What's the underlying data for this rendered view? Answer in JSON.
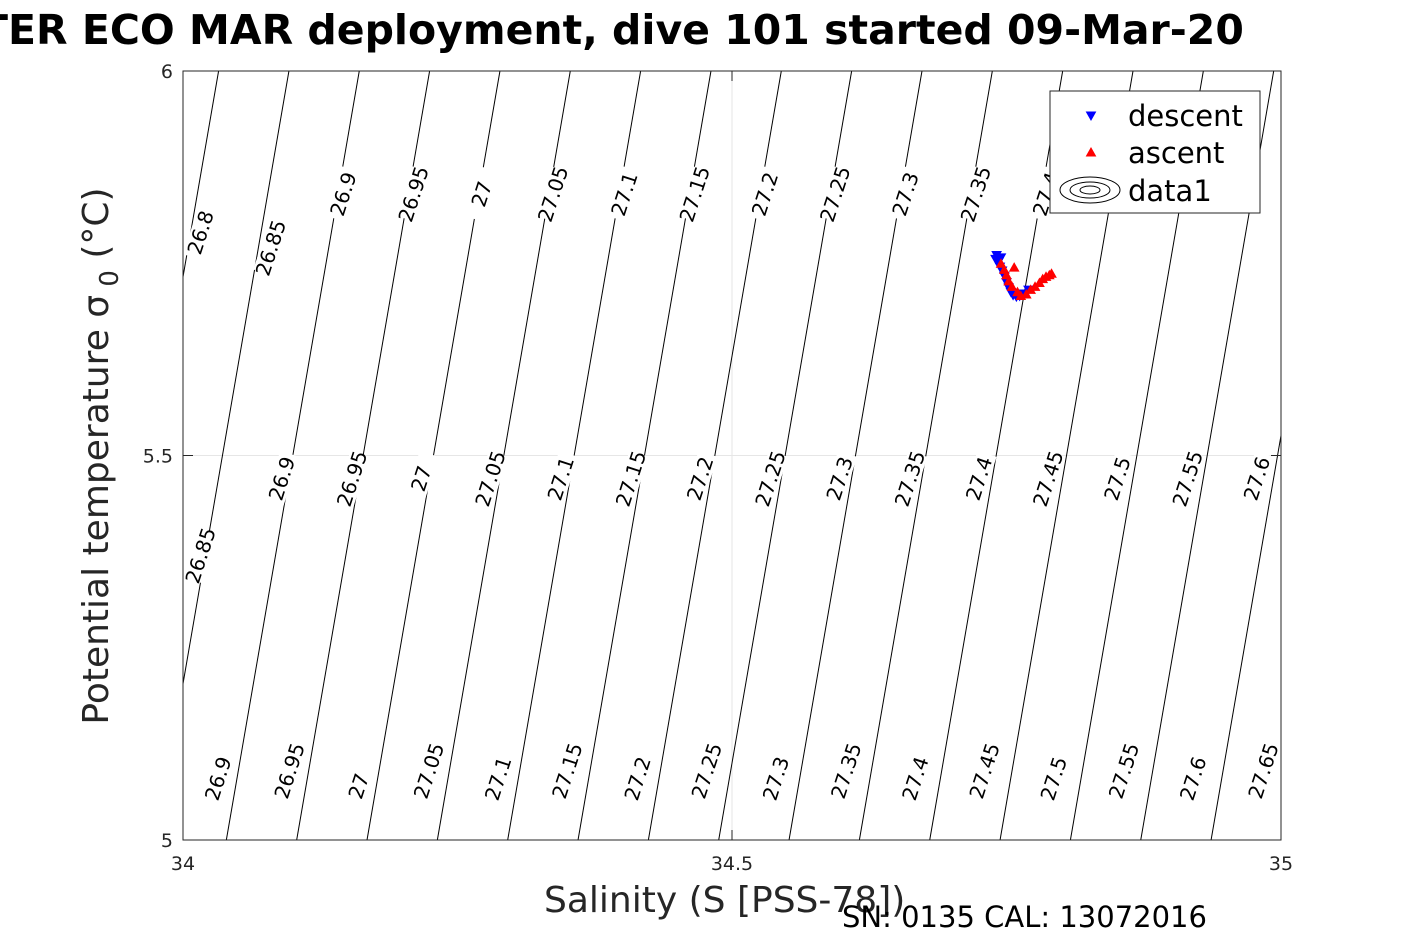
{
  "chart_data": {
    "type": "scatter",
    "title": "TER ECO MAR deployment, dive 101 started 09-Mar-20",
    "xlabel": "Salinity (S [PSS-78])",
    "ylabel_text": "Potential temperature σ",
    "ylabel_sub": "0",
    "ylabel_unit": " (°C)",
    "xlim": [
      34,
      35.0
    ],
    "ylim": [
      5,
      6
    ],
    "xticks": [
      34,
      34.5,
      35
    ],
    "xtick_labels": [
      "34",
      "34.5",
      "35"
    ],
    "yticks": [
      5,
      5.5,
      6
    ],
    "ytick_labels": [
      "5",
      "5.5",
      "6"
    ],
    "grid": true,
    "legend_placement": "top-right",
    "legend": [
      "descent",
      "ascent",
      "data1"
    ],
    "descent_color": "#0000ff",
    "ascent_color": "#ff0000",
    "contour_color": "#000000",
    "isopycnals": {
      "levels": [
        26.8,
        26.85,
        26.9,
        26.95,
        27.0,
        27.05,
        27.1,
        27.15,
        27.2,
        27.25,
        27.3,
        27.35,
        27.4,
        27.45,
        27.5,
        27.55,
        27.6,
        27.65
      ],
      "labels": [
        {
          "text": "26.8",
          "s": 34.016,
          "t": 5.79
        },
        {
          "text": "26.85",
          "s": 34.08,
          "t": 5.77
        },
        {
          "text": "26.9",
          "s": 34.146,
          "t": 5.84
        },
        {
          "text": "26.95",
          "s": 34.21,
          "t": 5.84
        },
        {
          "text": "27",
          "s": 34.272,
          "t": 5.84
        },
        {
          "text": "27.05",
          "s": 34.337,
          "t": 5.84
        },
        {
          "text": "27.1",
          "s": 34.402,
          "t": 5.84
        },
        {
          "text": "27.15",
          "s": 34.466,
          "t": 5.84
        },
        {
          "text": "27.2",
          "s": 34.53,
          "t": 5.84
        },
        {
          "text": "27.25",
          "s": 34.594,
          "t": 5.84
        },
        {
          "text": "27.3",
          "s": 34.658,
          "t": 5.84
        },
        {
          "text": "27.35",
          "s": 34.722,
          "t": 5.84
        },
        {
          "text": "27.4",
          "s": 34.786,
          "t": 5.84
        },
        {
          "text": "26.85",
          "s": 34.016,
          "t": 5.37
        },
        {
          "text": "26.9",
          "s": 34.09,
          "t": 5.47
        },
        {
          "text": "26.95",
          "s": 34.154,
          "t": 5.47
        },
        {
          "text": "27",
          "s": 34.217,
          "t": 5.47
        },
        {
          "text": "27.05",
          "s": 34.28,
          "t": 5.47
        },
        {
          "text": "27.1",
          "s": 34.344,
          "t": 5.47
        },
        {
          "text": "27.15",
          "s": 34.408,
          "t": 5.47
        },
        {
          "text": "27.2",
          "s": 34.471,
          "t": 5.47
        },
        {
          "text": "27.25",
          "s": 34.535,
          "t": 5.47
        },
        {
          "text": "27.3",
          "s": 34.598,
          "t": 5.47
        },
        {
          "text": "27.35",
          "s": 34.662,
          "t": 5.47
        },
        {
          "text": "27.4",
          "s": 34.725,
          "t": 5.47
        },
        {
          "text": "27.45",
          "s": 34.788,
          "t": 5.47
        },
        {
          "text": "27.5",
          "s": 34.851,
          "t": 5.47
        },
        {
          "text": "27.55",
          "s": 34.915,
          "t": 5.47
        },
        {
          "text": "27.6",
          "s": 34.978,
          "t": 5.47
        },
        {
          "text": "26.9",
          "s": 34.032,
          "t": 5.08
        },
        {
          "text": "26.95",
          "s": 34.097,
          "t": 5.09
        },
        {
          "text": "27",
          "s": 34.16,
          "t": 5.07
        },
        {
          "text": "27.05",
          "s": 34.224,
          "t": 5.09
        },
        {
          "text": "27.1",
          "s": 34.287,
          "t": 5.08
        },
        {
          "text": "27.15",
          "s": 34.35,
          "t": 5.09
        },
        {
          "text": "27.2",
          "s": 34.414,
          "t": 5.08
        },
        {
          "text": "27.25",
          "s": 34.477,
          "t": 5.09
        },
        {
          "text": "27.3",
          "s": 34.54,
          "t": 5.08
        },
        {
          "text": "27.35",
          "s": 34.604,
          "t": 5.09
        },
        {
          "text": "27.4",
          "s": 34.667,
          "t": 5.08
        },
        {
          "text": "27.45",
          "s": 34.73,
          "t": 5.09
        },
        {
          "text": "27.5",
          "s": 34.793,
          "t": 5.08
        },
        {
          "text": "27.55",
          "s": 34.857,
          "t": 5.09
        },
        {
          "text": "27.6",
          "s": 34.92,
          "t": 5.08
        },
        {
          "text": "27.65",
          "s": 34.984,
          "t": 5.09
        }
      ]
    },
    "series": [
      {
        "name": "descent",
        "marker": "triangle-down",
        "x": [
          34.74,
          34.741,
          34.743,
          34.744,
          34.745,
          34.746,
          34.748,
          34.75,
          34.752,
          34.754,
          34.756,
          34.759,
          34.762,
          34.766,
          34.77
        ],
        "y": [
          5.755,
          5.76,
          5.752,
          5.745,
          5.757,
          5.74,
          5.733,
          5.725,
          5.718,
          5.712,
          5.708,
          5.706,
          5.707,
          5.71,
          5.715
        ]
      },
      {
        "name": "ascent",
        "marker": "triangle-up",
        "x": [
          34.745,
          34.748,
          34.75,
          34.752,
          34.755,
          34.757,
          34.76,
          34.763,
          34.768,
          34.772,
          34.776,
          34.78,
          34.783,
          34.786,
          34.789,
          34.791
        ],
        "y": [
          5.75,
          5.742,
          5.735,
          5.727,
          5.72,
          5.745,
          5.713,
          5.708,
          5.71,
          5.716,
          5.72,
          5.725,
          5.73,
          5.733,
          5.735,
          5.737
        ]
      }
    ],
    "footer": "SN: 0135  CAL: 13072016"
  }
}
